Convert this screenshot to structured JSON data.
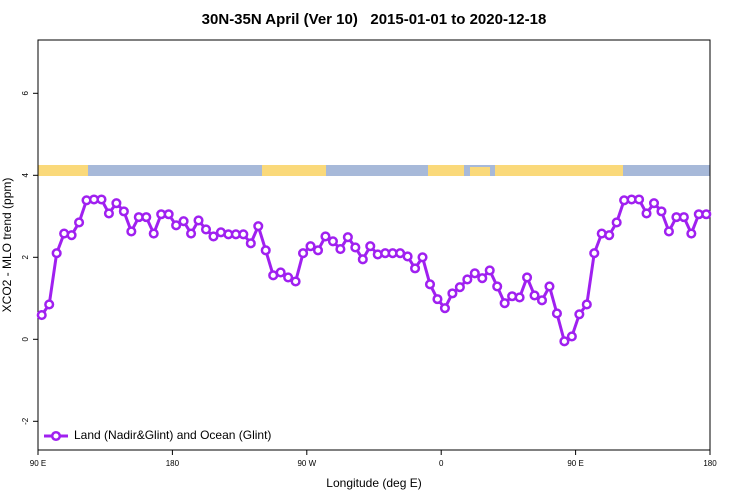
{
  "chart_data": {
    "type": "line",
    "title": "30N-35N April (Ver 10)   2015-01-01 to 2020-12-18",
    "xlabel": "Longitude (deg E)",
    "ylabel": "XCO2 - MLO trend (ppm)",
    "xlim": [
      90,
      540
    ],
    "ylim": [
      -2.7,
      7.3
    ],
    "xticks": [
      {
        "value": 90,
        "label": "90 E"
      },
      180,
      {
        "value": 270,
        "label": "90 W"
      },
      {
        "value": 360,
        "label": "0"
      },
      {
        "value": 450,
        "label": "90 E"
      },
      {
        "value": 540,
        "label": "180"
      }
    ],
    "yticks": [
      -2,
      0,
      2,
      4,
      6
    ],
    "legend": "bottom-left",
    "x": [
      92.5,
      97.5,
      102.5,
      107.5,
      112.5,
      117.5,
      122.5,
      127.5,
      132.5,
      137.5,
      142.5,
      147.5,
      152.5,
      157.5,
      162.5,
      167.5,
      172.5,
      177.5,
      182.5,
      187.5,
      192.5,
      197.5,
      202.5,
      207.5,
      212.5,
      217.5,
      222.5,
      227.5,
      232.5,
      237.5,
      242.5,
      247.5,
      252.5,
      257.5,
      262.5,
      267.5,
      272.5,
      277.5,
      282.5,
      287.5,
      292.5,
      297.5,
      302.5,
      307.5,
      312.5,
      317.5,
      322.5,
      327.5,
      332.5,
      337.5,
      342.5,
      347.5,
      352.5,
      357.5,
      362.5,
      367.5,
      372.5,
      377.5,
      382.5,
      387.5,
      392.5,
      397.5,
      402.5,
      407.5,
      412.5,
      417.5,
      422.5,
      427.5,
      432.5,
      437.5,
      442.5,
      447.5,
      452.5,
      457.5,
      462.5,
      467.5,
      472.5,
      477.5,
      482.5,
      487.5,
      492.5,
      497.5,
      502.5,
      507.5,
      512.5,
      517.5,
      522.5,
      527.5,
      532.5,
      537.5
    ],
    "series": [
      {
        "name": "Land (Nadir&Glint) and Ocean (Glint)",
        "color": "#a020f0",
        "values": [
          0.59,
          0.85,
          2.1,
          2.58,
          2.54,
          2.85,
          3.39,
          3.41,
          3.41,
          3.07,
          3.32,
          3.12,
          2.63,
          2.98,
          2.98,
          2.58,
          3.05,
          3.05,
          2.78,
          2.88,
          2.58,
          2.9,
          2.68,
          2.51,
          2.61,
          2.56,
          2.56,
          2.56,
          2.34,
          2.76,
          2.17,
          1.56,
          1.63,
          1.51,
          1.41,
          2.1,
          2.27,
          2.17,
          2.51,
          2.39,
          2.2,
          2.49,
          2.24,
          1.95,
          2.27,
          2.07,
          2.1,
          2.1,
          2.1,
          2.02,
          1.73,
          2.0,
          1.34,
          0.98,
          0.76,
          1.12,
          1.27,
          1.46,
          1.61,
          1.49,
          1.68,
          1.29,
          0.88,
          1.05,
          1.02,
          1.51,
          1.07,
          0.95,
          1.29,
          0.63,
          -0.05,
          0.07,
          0.61,
          0.85,
          2.1,
          2.58,
          2.54,
          2.85,
          3.39,
          3.41,
          3.41,
          3.07,
          3.32,
          3.12,
          2.63,
          2.98,
          2.98,
          2.58,
          3.05,
          3.05
        ]
      }
    ]
  }
}
